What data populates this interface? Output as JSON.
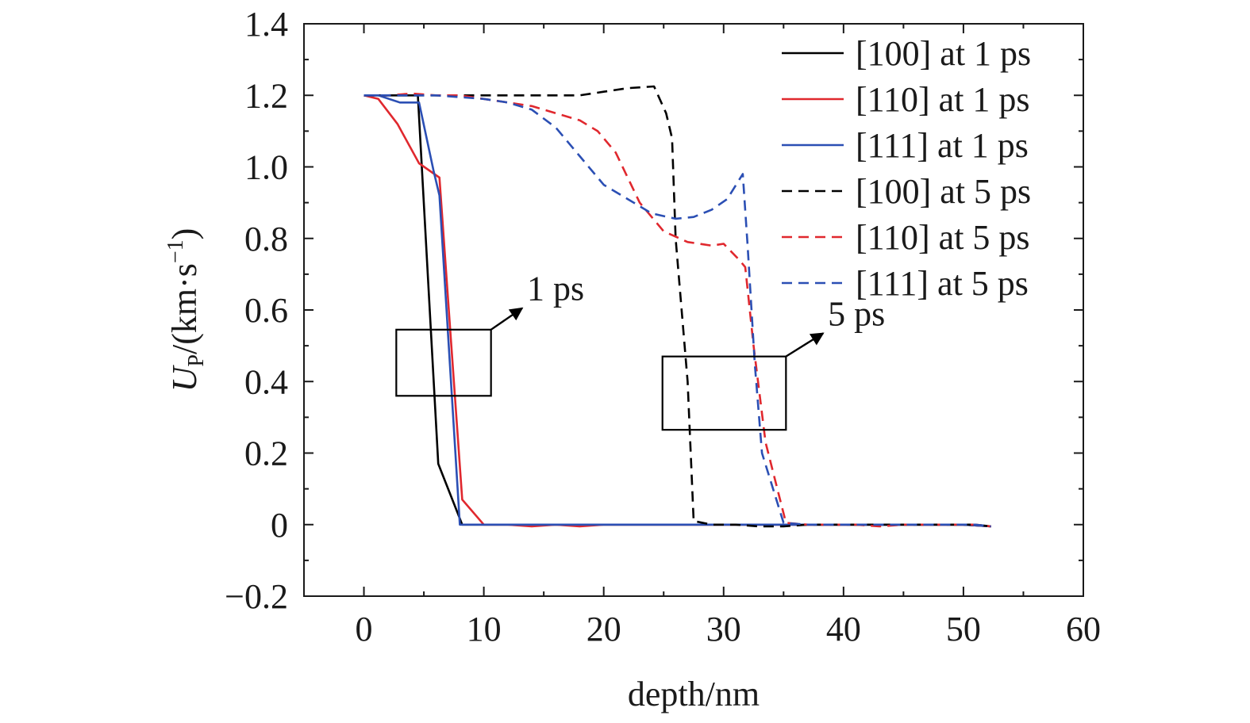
{
  "chart_data": {
    "type": "line",
    "xlabel": "depth/nm",
    "ylabel": {
      "main": "U",
      "sub": "P",
      "rest": "/(km·s",
      "sup": "−1",
      "close": ")"
    },
    "xlim": [
      -5,
      60
    ],
    "ylim": [
      -0.2,
      1.4
    ],
    "x_ticks": [
      0,
      10,
      20,
      30,
      40,
      50,
      60
    ],
    "y_ticks": [
      -0.2,
      0,
      0.2,
      0.4,
      0.6,
      0.8,
      1.0,
      1.2,
      1.4
    ],
    "x_tick_labels": [
      "0",
      "10",
      "20",
      "30",
      "40",
      "50",
      "60"
    ],
    "y_tick_labels": [
      "−0.2",
      "0",
      "0.2",
      "0.4",
      "0.6",
      "0.8",
      "1.0",
      "1.2",
      "1.4"
    ],
    "grid": false,
    "legend_position": "top-right",
    "series": [
      {
        "name": "[100] at 1 ps",
        "color": "#000000",
        "dash": "solid",
        "x": [
          0,
          1,
          2,
          3,
          4.5,
          6.2,
          8.2,
          10,
          12,
          14,
          16,
          18,
          20,
          22,
          24,
          26,
          28,
          30,
          32,
          34,
          36,
          38,
          40,
          42,
          44,
          46,
          48,
          50,
          52.3
        ],
        "y": [
          1.2,
          1.2,
          1.2,
          1.2,
          1.2,
          0.17,
          0,
          0,
          0,
          0,
          0,
          0,
          0,
          0,
          0,
          0,
          0,
          0,
          0,
          0,
          0,
          0,
          0,
          0,
          0,
          0,
          0,
          0,
          -0.005
        ]
      },
      {
        "name": "[110] at 1 ps",
        "color": "#e0282e",
        "dash": "solid",
        "x": [
          0,
          1.2,
          2.8,
          4.6,
          6.3,
          8.2,
          10,
          12,
          14,
          16,
          18,
          20,
          22,
          24,
          26,
          28,
          30,
          32,
          34,
          36,
          38,
          40,
          42,
          44,
          46,
          48,
          50,
          52.3
        ],
        "y": [
          1.2,
          1.19,
          1.12,
          1.01,
          0.97,
          0.07,
          0,
          0,
          -0.005,
          0,
          -0.005,
          0,
          0,
          0,
          0,
          0,
          0,
          0,
          0,
          0,
          0,
          0,
          0,
          0,
          0,
          0,
          0,
          -0.005
        ]
      },
      {
        "name": "[111] at 1 ps",
        "color": "#2b4fb4",
        "dash": "solid",
        "x": [
          0,
          1.2,
          3,
          4.6,
          5.8,
          6.3,
          8,
          10,
          12,
          14,
          16,
          18,
          20,
          22,
          24,
          26,
          28,
          30,
          32,
          34,
          36,
          38,
          40,
          42,
          44,
          46,
          48,
          50,
          52.3
        ],
        "y": [
          1.2,
          1.2,
          1.18,
          1.18,
          0.99,
          0.92,
          0,
          0,
          0,
          0,
          0,
          0,
          0,
          0,
          0,
          0,
          0,
          0,
          0,
          0,
          0,
          0,
          0,
          0,
          0,
          0,
          0,
          0,
          -0.005
        ]
      },
      {
        "name": "[100] at 5 ps",
        "color": "#000000",
        "dash": "dashed",
        "x": [
          0,
          2,
          4,
          6,
          8,
          10,
          12,
          14,
          16,
          18,
          20,
          22,
          24.2,
          25.2,
          25.7,
          26,
          27,
          27.5,
          29,
          31,
          33,
          35,
          37,
          39,
          41,
          43,
          45,
          47,
          49,
          51,
          52.3
        ],
        "y": [
          1.2,
          1.2,
          1.2,
          1.2,
          1.2,
          1.2,
          1.2,
          1.2,
          1.2,
          1.2,
          1.21,
          1.22,
          1.225,
          1.15,
          1.08,
          0.8,
          0.4,
          0.01,
          0,
          0,
          -0.005,
          -0.005,
          0,
          0,
          0,
          0,
          0,
          0,
          0,
          0,
          -0.005
        ]
      },
      {
        "name": "[110] at 5 ps",
        "color": "#e0282e",
        "dash": "dashed",
        "x": [
          0,
          2,
          4,
          6,
          8,
          10,
          12,
          14,
          16,
          18,
          19.5,
          21,
          23,
          25,
          27,
          29,
          30,
          31.3,
          31.8,
          32.5,
          33.5,
          35.2,
          37,
          39,
          41,
          43,
          45,
          47,
          49,
          51,
          52.3
        ],
        "y": [
          1.2,
          1.2,
          1.205,
          1.2,
          1.2,
          1.19,
          1.18,
          1.17,
          1.15,
          1.13,
          1.1,
          1.04,
          0.9,
          0.82,
          0.79,
          0.78,
          0.785,
          0.74,
          0.72,
          0.5,
          0.23,
          0.005,
          0,
          0,
          0,
          -0.005,
          0,
          0,
          0,
          0,
          -0.005
        ]
      },
      {
        "name": "[111] at 5 ps",
        "color": "#2b4fb4",
        "dash": "dashed",
        "x": [
          0,
          2,
          4,
          6,
          8,
          10,
          12,
          14,
          16,
          18,
          20,
          22,
          24,
          26,
          27.5,
          29,
          30.3,
          31.6,
          32,
          32.6,
          33.2,
          35,
          37,
          39,
          41,
          43,
          45,
          47,
          49,
          51,
          52.3
        ],
        "y": [
          1.2,
          1.2,
          1.2,
          1.2,
          1.195,
          1.19,
          1.18,
          1.16,
          1.11,
          1.03,
          0.95,
          0.91,
          0.87,
          0.855,
          0.86,
          0.88,
          0.91,
          0.98,
          0.78,
          0.45,
          0.2,
          0.005,
          0,
          0,
          0,
          0,
          0,
          0,
          0,
          0,
          -0.005
        ]
      }
    ],
    "annotations": [
      {
        "text": "1 ps",
        "box_x": [
          2.7,
          10.6
        ],
        "box_y": [
          0.36,
          0.545
        ],
        "arrow_from": [
          10.6,
          0.545
        ],
        "arrow_to": [
          13.2,
          0.605
        ]
      },
      {
        "text": "5 ps",
        "box_x": [
          24.9,
          35.2
        ],
        "box_y": [
          0.265,
          0.47
        ],
        "arrow_from": [
          35.2,
          0.47
        ],
        "arrow_to": [
          38.3,
          0.535
        ]
      }
    ]
  }
}
